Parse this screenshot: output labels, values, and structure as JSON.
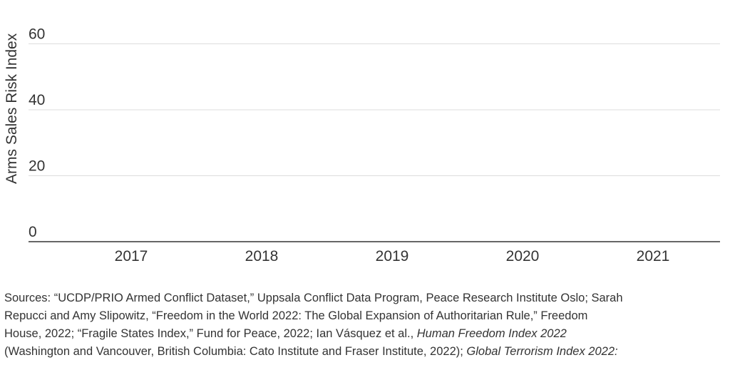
{
  "chart_data": {
    "type": "line",
    "ylabel": "Arms Sales Risk Index",
    "ylim": [
      0,
      70
    ],
    "y_ticks": [
      "0",
      "20",
      "40",
      "60"
    ],
    "categories": [
      "2017",
      "2018",
      "2019",
      "2020",
      "2021"
    ],
    "series": [],
    "grid": true
  },
  "source": {
    "lines": [
      {
        "text": "Sources: “UCDP/PRIO Armed Conflict Dataset,” Uppsala Conflict Data Program, Peace Research Institute Oslo; Sarah"
      },
      {
        "text": "Repucci and Amy Slipowitz, “Freedom in the World 2022: The Global Expansion of Authoritarian Rule,” Freedom"
      },
      {
        "text": "House, 2022; “Fragile States Index,” Fund for Peace, 2022; Ian Vásquez et al., ",
        "italic": "Human Freedom Index 2022"
      },
      {
        "text": "(Washington and Vancouver, British Columbia: Cato Institute and Fraser Institute, 2022); ",
        "italic": "Global Terrorism Index 2022:"
      }
    ]
  }
}
